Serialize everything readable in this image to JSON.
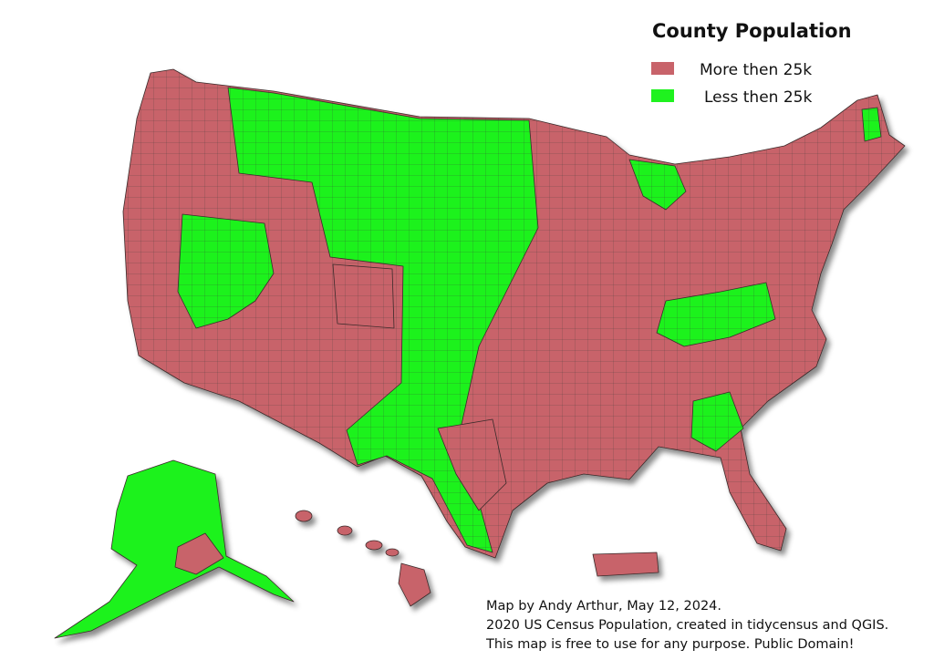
{
  "title": "County Population",
  "legend": [
    {
      "label": "More then 25k",
      "color": "#c8636a"
    },
    {
      "label": "Less then 25k",
      "color": "#1ff21f"
    }
  ],
  "credits": [
    "Map by Andy Arthur, May 12, 2024.",
    "2020 US Census Population, created in tidycensus and QGIS.",
    "This map is free to use for any purpose. Public Domain!"
  ]
}
